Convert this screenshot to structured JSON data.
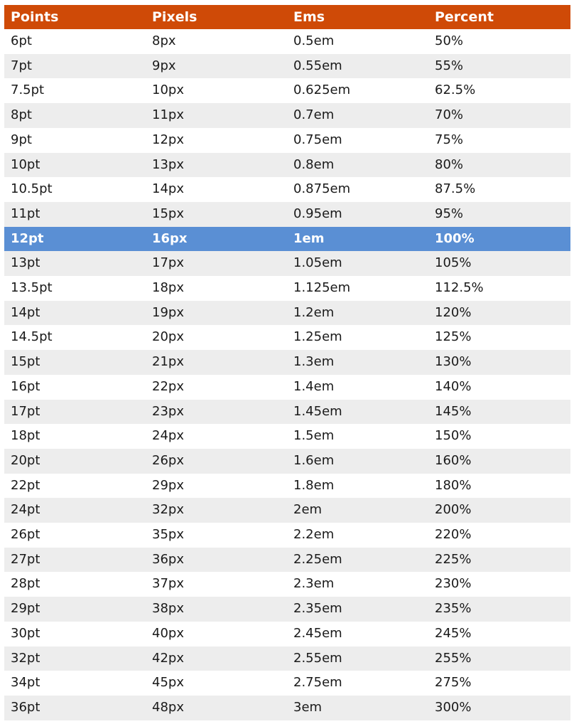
{
  "table": {
    "headers": [
      "Points",
      "Pixels",
      "Ems",
      "Percent"
    ],
    "highlight_color": "#5a8fd4",
    "header_color": "#cf4a07",
    "rows": [
      {
        "cells": [
          "6pt",
          "8px",
          "0.5em",
          "50%"
        ],
        "highlight": false
      },
      {
        "cells": [
          "7pt",
          "9px",
          "0.55em",
          "55%"
        ],
        "highlight": false
      },
      {
        "cells": [
          "7.5pt",
          "10px",
          "0.625em",
          "62.5%"
        ],
        "highlight": false
      },
      {
        "cells": [
          "8pt",
          "11px",
          "0.7em",
          "70%"
        ],
        "highlight": false
      },
      {
        "cells": [
          "9pt",
          "12px",
          "0.75em",
          "75%"
        ],
        "highlight": false
      },
      {
        "cells": [
          "10pt",
          "13px",
          "0.8em",
          "80%"
        ],
        "highlight": false
      },
      {
        "cells": [
          "10.5pt",
          "14px",
          "0.875em",
          "87.5%"
        ],
        "highlight": false
      },
      {
        "cells": [
          "11pt",
          "15px",
          "0.95em",
          "95%"
        ],
        "highlight": false
      },
      {
        "cells": [
          "12pt",
          "16px",
          "1em",
          "100%"
        ],
        "highlight": true
      },
      {
        "cells": [
          "13pt",
          "17px",
          "1.05em",
          "105%"
        ],
        "highlight": false
      },
      {
        "cells": [
          "13.5pt",
          "18px",
          "1.125em",
          "112.5%"
        ],
        "highlight": false
      },
      {
        "cells": [
          "14pt",
          "19px",
          "1.2em",
          "120%"
        ],
        "highlight": false
      },
      {
        "cells": [
          "14.5pt",
          "20px",
          "1.25em",
          "125%"
        ],
        "highlight": false
      },
      {
        "cells": [
          "15pt",
          "21px",
          "1.3em",
          "130%"
        ],
        "highlight": false
      },
      {
        "cells": [
          "16pt",
          "22px",
          "1.4em",
          "140%"
        ],
        "highlight": false
      },
      {
        "cells": [
          "17pt",
          "23px",
          "1.45em",
          "145%"
        ],
        "highlight": false
      },
      {
        "cells": [
          "18pt",
          "24px",
          "1.5em",
          "150%"
        ],
        "highlight": false
      },
      {
        "cells": [
          "20pt",
          "26px",
          "1.6em",
          "160%"
        ],
        "highlight": false
      },
      {
        "cells": [
          "22pt",
          "29px",
          "1.8em",
          "180%"
        ],
        "highlight": false
      },
      {
        "cells": [
          "24pt",
          "32px",
          "2em",
          "200%"
        ],
        "highlight": false
      },
      {
        "cells": [
          "26pt",
          "35px",
          "2.2em",
          "220%"
        ],
        "highlight": false
      },
      {
        "cells": [
          "27pt",
          "36px",
          "2.25em",
          "225%"
        ],
        "highlight": false
      },
      {
        "cells": [
          "28pt",
          "37px",
          "2.3em",
          "230%"
        ],
        "highlight": false
      },
      {
        "cells": [
          "29pt",
          "38px",
          "2.35em",
          "235%"
        ],
        "highlight": false
      },
      {
        "cells": [
          "30pt",
          "40px",
          "2.45em",
          "245%"
        ],
        "highlight": false
      },
      {
        "cells": [
          "32pt",
          "42px",
          "2.55em",
          "255%"
        ],
        "highlight": false
      },
      {
        "cells": [
          "34pt",
          "45px",
          "2.75em",
          "275%"
        ],
        "highlight": false
      },
      {
        "cells": [
          "36pt",
          "48px",
          "3em",
          "300%"
        ],
        "highlight": false
      }
    ]
  }
}
